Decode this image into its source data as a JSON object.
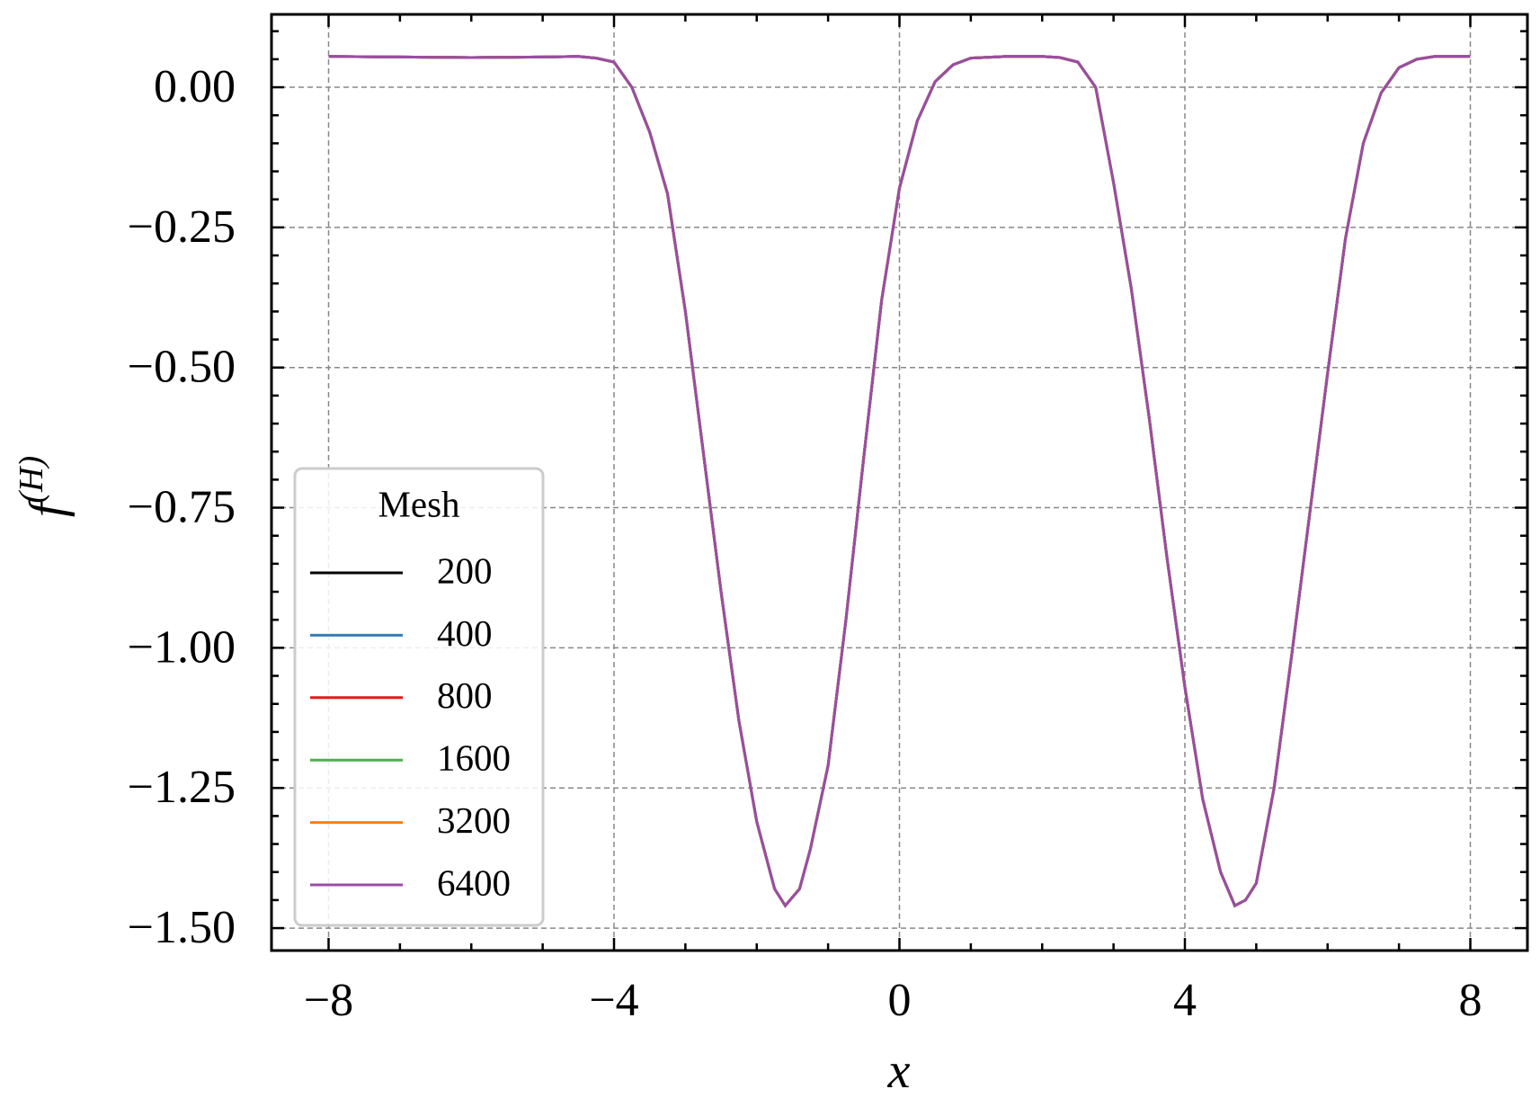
{
  "chart_data": {
    "type": "line",
    "xlabel": "x",
    "ylabel": "f",
    "ylabel_sup": "(H)",
    "x": [
      -8,
      -7,
      -6,
      -5,
      -4.5,
      -4.25,
      -4,
      -3.75,
      -3.5,
      -3.25,
      -3,
      -2.75,
      -2.5,
      -2.25,
      -2,
      -1.75,
      -1.6,
      -1.4,
      -1.25,
      -1,
      -0.75,
      -0.5,
      -0.25,
      0,
      0.25,
      0.5,
      0.75,
      1,
      1.5,
      2,
      2.25,
      2.5,
      2.75,
      3,
      3.25,
      3.5,
      3.75,
      4,
      4.25,
      4.5,
      4.7,
      4.85,
      5,
      5.25,
      5.5,
      5.75,
      6,
      6.25,
      6.5,
      6.75,
      7,
      7.25,
      7.5,
      8
    ],
    "series": [
      {
        "name": "200",
        "color": "#000000",
        "values": [
          0.055,
          0.054,
          0.053,
          0.054,
          0.055,
          0.052,
          0.045,
          0.0,
          -0.08,
          -0.19,
          -0.4,
          -0.65,
          -0.9,
          -1.13,
          -1.31,
          -1.43,
          -1.46,
          -1.43,
          -1.36,
          -1.21,
          -0.95,
          -0.66,
          -0.38,
          -0.18,
          -0.06,
          0.01,
          0.04,
          0.052,
          0.055,
          0.055,
          0.053,
          0.045,
          0.0,
          -0.17,
          -0.36,
          -0.59,
          -0.84,
          -1.07,
          -1.27,
          -1.4,
          -1.46,
          -1.45,
          -1.42,
          -1.25,
          -1.01,
          -0.76,
          -0.51,
          -0.27,
          -0.1,
          -0.01,
          0.035,
          0.05,
          0.055,
          0.055
        ]
      },
      {
        "name": "400",
        "color": "#377eb8",
        "values": [
          0.055,
          0.054,
          0.053,
          0.054,
          0.055,
          0.052,
          0.045,
          0.0,
          -0.08,
          -0.19,
          -0.4,
          -0.65,
          -0.9,
          -1.13,
          -1.31,
          -1.43,
          -1.46,
          -1.43,
          -1.36,
          -1.21,
          -0.95,
          -0.66,
          -0.38,
          -0.18,
          -0.06,
          0.01,
          0.04,
          0.052,
          0.055,
          0.055,
          0.053,
          0.045,
          0.0,
          -0.17,
          -0.36,
          -0.59,
          -0.84,
          -1.07,
          -1.27,
          -1.4,
          -1.46,
          -1.45,
          -1.42,
          -1.25,
          -1.01,
          -0.76,
          -0.51,
          -0.27,
          -0.1,
          -0.01,
          0.035,
          0.05,
          0.055,
          0.055
        ]
      },
      {
        "name": "800",
        "color": "#e41a1c",
        "values": [
          0.055,
          0.054,
          0.053,
          0.054,
          0.055,
          0.052,
          0.045,
          0.0,
          -0.08,
          -0.19,
          -0.4,
          -0.65,
          -0.9,
          -1.13,
          -1.31,
          -1.43,
          -1.46,
          -1.43,
          -1.36,
          -1.21,
          -0.95,
          -0.66,
          -0.38,
          -0.18,
          -0.06,
          0.01,
          0.04,
          0.052,
          0.055,
          0.055,
          0.053,
          0.045,
          0.0,
          -0.17,
          -0.36,
          -0.59,
          -0.84,
          -1.07,
          -1.27,
          -1.4,
          -1.46,
          -1.45,
          -1.42,
          -1.25,
          -1.01,
          -0.76,
          -0.51,
          -0.27,
          -0.1,
          -0.01,
          0.035,
          0.05,
          0.055,
          0.055
        ]
      },
      {
        "name": "1600",
        "color": "#4daf4a",
        "values": [
          0.055,
          0.054,
          0.053,
          0.054,
          0.055,
          0.052,
          0.045,
          0.0,
          -0.08,
          -0.19,
          -0.4,
          -0.65,
          -0.9,
          -1.13,
          -1.31,
          -1.43,
          -1.46,
          -1.43,
          -1.36,
          -1.21,
          -0.95,
          -0.66,
          -0.38,
          -0.18,
          -0.06,
          0.01,
          0.04,
          0.052,
          0.055,
          0.055,
          0.053,
          0.045,
          0.0,
          -0.17,
          -0.36,
          -0.59,
          -0.84,
          -1.07,
          -1.27,
          -1.4,
          -1.46,
          -1.45,
          -1.42,
          -1.25,
          -1.01,
          -0.76,
          -0.51,
          -0.27,
          -0.1,
          -0.01,
          0.035,
          0.05,
          0.055,
          0.055
        ]
      },
      {
        "name": "3200",
        "color": "#ff7f00",
        "values": [
          0.055,
          0.054,
          0.053,
          0.054,
          0.055,
          0.052,
          0.045,
          0.0,
          -0.08,
          -0.19,
          -0.4,
          -0.65,
          -0.9,
          -1.13,
          -1.31,
          -1.43,
          -1.46,
          -1.43,
          -1.36,
          -1.21,
          -0.95,
          -0.66,
          -0.38,
          -0.18,
          -0.06,
          0.01,
          0.04,
          0.052,
          0.055,
          0.055,
          0.053,
          0.045,
          0.0,
          -0.17,
          -0.36,
          -0.59,
          -0.84,
          -1.07,
          -1.27,
          -1.4,
          -1.46,
          -1.45,
          -1.42,
          -1.25,
          -1.01,
          -0.76,
          -0.51,
          -0.27,
          -0.1,
          -0.01,
          0.035,
          0.05,
          0.055,
          0.055
        ]
      },
      {
        "name": "6400",
        "color": "#984ea3",
        "values": [
          0.055,
          0.054,
          0.053,
          0.054,
          0.055,
          0.052,
          0.045,
          0.0,
          -0.08,
          -0.19,
          -0.4,
          -0.65,
          -0.9,
          -1.13,
          -1.31,
          -1.43,
          -1.46,
          -1.43,
          -1.36,
          -1.21,
          -0.95,
          -0.66,
          -0.38,
          -0.18,
          -0.06,
          0.01,
          0.04,
          0.052,
          0.055,
          0.055,
          0.053,
          0.045,
          0.0,
          -0.17,
          -0.36,
          -0.59,
          -0.84,
          -1.07,
          -1.27,
          -1.4,
          -1.46,
          -1.45,
          -1.42,
          -1.25,
          -1.01,
          -0.76,
          -0.51,
          -0.27,
          -0.1,
          -0.01,
          0.035,
          0.05,
          0.055,
          0.055
        ]
      }
    ],
    "legend_title": "Mesh",
    "legend": "lower left",
    "xlim": [
      -8.8,
      8.8
    ],
    "ylim": [
      -1.54,
      0.13
    ],
    "xticks": [
      {
        "value": -8,
        "label": "−8"
      },
      {
        "value": -4,
        "label": "−4"
      },
      0,
      4,
      8
    ],
    "yticks": [
      {
        "value": 0,
        "label": "0.00"
      },
      {
        "value": -0.25,
        "label": "−0.25"
      },
      {
        "value": -0.5,
        "label": "−0.50"
      },
      {
        "value": -0.75,
        "label": "−0.75"
      },
      {
        "value": -1,
        "label": "−1.00"
      },
      {
        "value": -1.25,
        "label": "−1.25"
      },
      {
        "value": -1.5,
        "label": "−1.50"
      }
    ],
    "xminorticks": [
      -7,
      -6,
      -5,
      -3,
      -2,
      -1,
      1,
      2,
      3,
      5,
      6,
      7
    ],
    "yminorticks": [
      0.1,
      0.05,
      -0.05,
      -0.1,
      -0.15,
      -0.2,
      -0.3,
      -0.35,
      -0.4,
      -0.45,
      -0.55,
      -0.6,
      -0.65,
      -0.7,
      -0.8,
      -0.85,
      -0.9,
      -0.95,
      -1.05,
      -1.1,
      -1.15,
      -1.2,
      -1.3,
      -1.35,
      -1.4,
      -1.45
    ],
    "grid": true
  }
}
